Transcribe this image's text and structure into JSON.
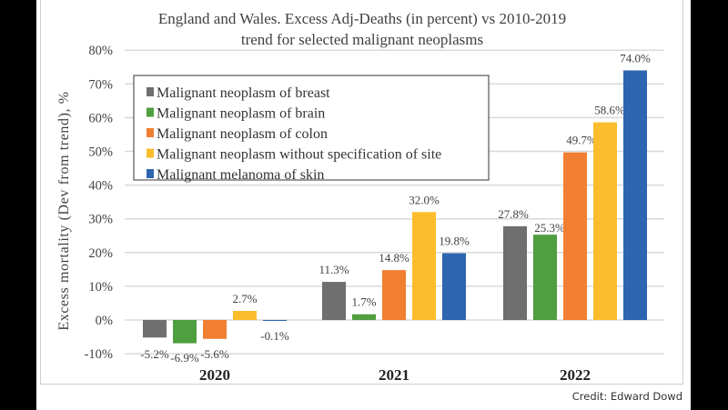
{
  "chart_data": {
    "type": "bar",
    "title": "England and Wales. Excess Adj-Deaths (in percent) vs 2010-2019 trend for selected malignant neoplasms",
    "title_lines": [
      "England and Wales. Excess Adj-Deaths (in percent) vs 2010-2019",
      "trend for selected malignant neoplasms"
    ],
    "ylabel": "Excess mortality (Dev from trend), %",
    "xlabel": "",
    "ylim": [
      -10,
      80
    ],
    "yticks": [
      -10,
      0,
      10,
      20,
      30,
      40,
      50,
      60,
      70,
      80
    ],
    "ytick_labels": [
      "-10%",
      "0%",
      "10%",
      "20%",
      "30%",
      "40%",
      "50%",
      "60%",
      "70%",
      "80%"
    ],
    "grid": true,
    "legend_position": "top-left",
    "categories": [
      "2020",
      "2021",
      "2022"
    ],
    "series": [
      {
        "name": "Malignant neoplasm of breast",
        "color": "#6f6f6f",
        "values": [
          -5.2,
          11.3,
          27.8
        ],
        "labels": [
          "-5.2%",
          "11.3%",
          "27.8%"
        ]
      },
      {
        "name": "Malignant neoplasm of brain",
        "color": "#4f9e3f",
        "values": [
          -6.9,
          1.7,
          25.3
        ],
        "labels": [
          "-6.9%",
          "1.7%",
          "25.3%"
        ]
      },
      {
        "name": "Malignant neoplasm of colon",
        "color": "#f07f32",
        "values": [
          -5.6,
          14.8,
          49.7
        ],
        "labels": [
          "-5.6%",
          "14.8%",
          "49.7%"
        ]
      },
      {
        "name": "Malignant neoplasm without specification of site",
        "color": "#fbbd2c",
        "values": [
          2.7,
          32.0,
          58.6
        ],
        "labels": [
          "2.7%",
          "32.0%",
          "58.6%"
        ]
      },
      {
        "name": "Malignant melanoma of skin",
        "color": "#2e65b0",
        "values": [
          -0.1,
          19.8,
          74.0
        ],
        "labels": [
          "-0.1%",
          "19.8%",
          "74.0%"
        ]
      }
    ]
  },
  "credit": "Credit: Edward Dowd"
}
